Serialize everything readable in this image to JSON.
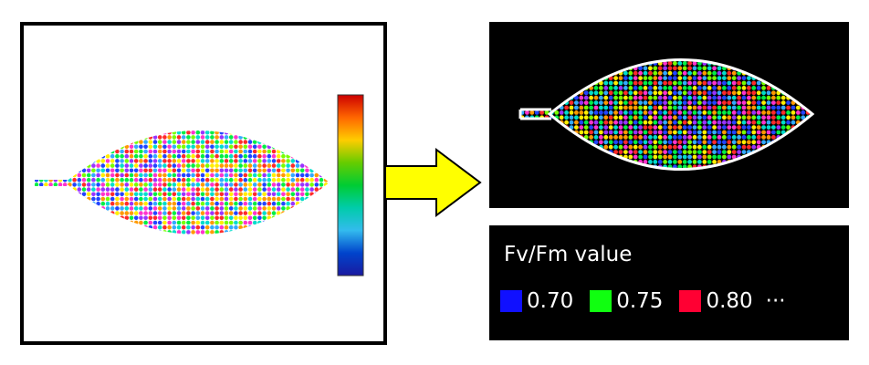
{
  "legend": {
    "title": "Fv/Fm value",
    "items": [
      {
        "color": "#1010ff",
        "label": "0.70"
      },
      {
        "color": "#10ff10",
        "label": "0.75"
      },
      {
        "color": "#ff0033",
        "label": "0.80"
      }
    ],
    "ellipsis": "···"
  },
  "colors": {
    "panel_border": "#000000",
    "arrow_fill": "#ffff00",
    "arrow_stroke": "#000000",
    "dark_background": "#000000",
    "leaf_outline": "#ffffff",
    "colorbar_stops": [
      "#cc0000",
      "#ff6600",
      "#ffcc00",
      "#66cc00",
      "#00cc33",
      "#00ccaa",
      "#33bbee",
      "#0044cc",
      "#1a1aa0"
    ],
    "dot_palette": [
      "#ff2a2a",
      "#ff9900",
      "#ffee00",
      "#77ff00",
      "#00ee44",
      "#00ddcc",
      "#33aaff",
      "#2244ff",
      "#9933ff",
      "#ff33cc"
    ]
  },
  "icons": {
    "arrow": "right-arrow-icon"
  }
}
